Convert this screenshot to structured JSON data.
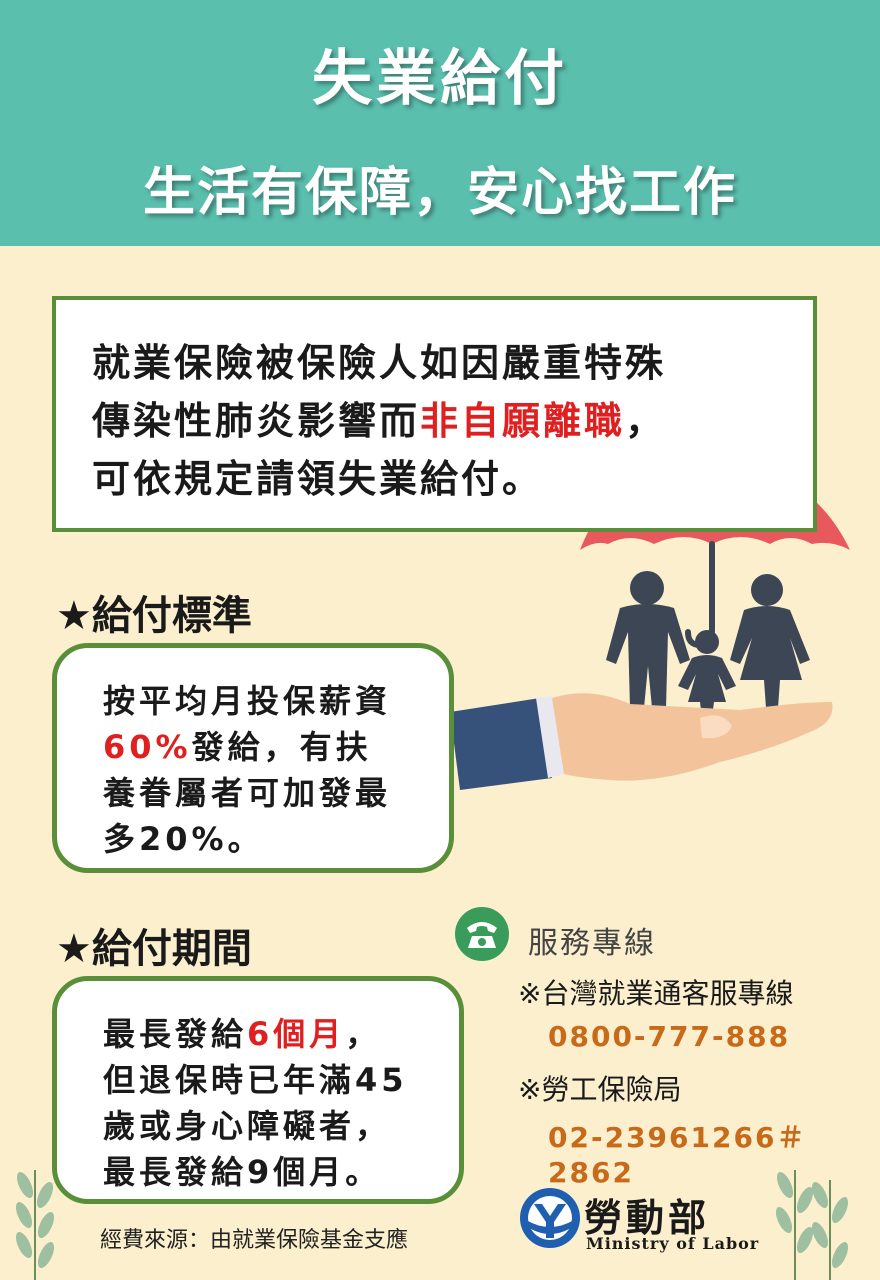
{
  "header": {
    "title": "失業給付",
    "subtitle": "生活有保障，安心找工作"
  },
  "intro": {
    "line1": "就業保險被保險人如因嚴重特殊",
    "line2_prefix": "傳染性肺炎影響而",
    "line2_highlight": "非自願離職",
    "line2_suffix": "，",
    "line3": "可依規定請領失業給付。"
  },
  "standard": {
    "heading": "★給付標準",
    "line1": "按平均月投保薪資",
    "line2_highlight": "60%",
    "line2_suffix": "發給，有扶",
    "line3": "養眷屬者可加發最",
    "line4": "多20%。"
  },
  "period": {
    "heading": "★給付期間",
    "line1_prefix": "最長發給",
    "line1_highlight": "6個月",
    "line1_suffix": "，",
    "line2": "但退保時已年滿45",
    "line3": "歲或身心障礙者，",
    "line4": "最長發給9個月。"
  },
  "hotline": {
    "title": "服務專線",
    "icon": "phone-icon",
    "items": [
      {
        "label": "※台灣就業通客服專線",
        "number": "0800-777-888"
      },
      {
        "label": "※勞工保險局",
        "number": "02-23961266＃2862"
      }
    ]
  },
  "footer": {
    "funding": "經費來源：由就業保險基金支應",
    "ministry_name": "勞動部",
    "ministry_en": "Ministry of Labor"
  },
  "colors": {
    "header": "#5bbfae",
    "background": "#fbefcd",
    "border": "#5a8f3a",
    "highlight": "#e02020",
    "hotline_number": "#c76a1a",
    "umbrella": "#e8595d",
    "silhouette": "#3d4654"
  }
}
